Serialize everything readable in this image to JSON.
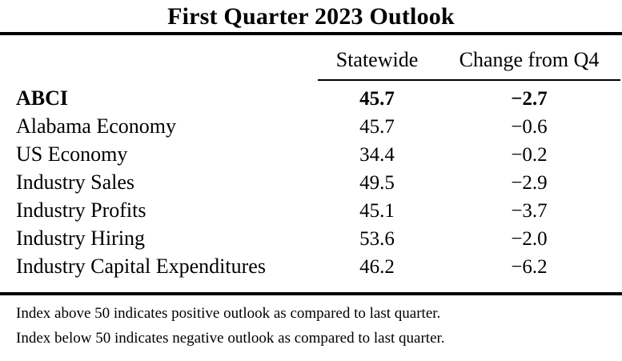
{
  "title": "First Quarter 2023 Outlook",
  "table": {
    "columns": {
      "statewide": "Statewide",
      "change": "Change from Q4"
    },
    "rows": [
      {
        "label": "ABCI",
        "statewide": "45.7",
        "change": "−2.7"
      },
      {
        "label": "Alabama Economy",
        "statewide": "45.7",
        "change": "−0.6"
      },
      {
        "label": "US Economy",
        "statewide": "34.4",
        "change": "−0.2"
      },
      {
        "label": "Industry Sales",
        "statewide": "49.5",
        "change": "−2.9"
      },
      {
        "label": "Industry Profits",
        "statewide": "45.1",
        "change": "−3.7"
      },
      {
        "label": "Industry Hiring",
        "statewide": "53.6",
        "change": "−2.0"
      },
      {
        "label": "Industry Capital Expenditures",
        "statewide": "46.2",
        "change": "−6.2"
      }
    ]
  },
  "footnotes": [
    "Index above 50 indicates positive outlook as compared to last quarter.",
    "Index below 50 indicates negative outlook as compared to last quarter."
  ]
}
